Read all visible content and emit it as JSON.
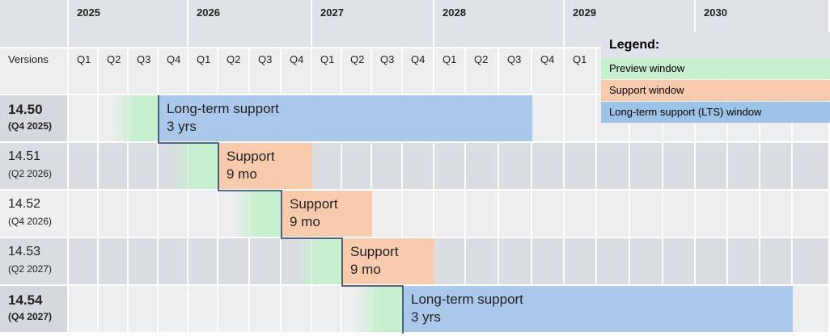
{
  "header": {
    "years": [
      "2025",
      "2026",
      "2027",
      "2028",
      "2029",
      "2030"
    ],
    "versions_label": "Versions",
    "quarters": [
      "Q1",
      "Q2",
      "Q3",
      "Q4",
      "Q1",
      "Q2",
      "Q3",
      "Q4",
      "Q1",
      "Q2",
      "Q3",
      "Q4",
      "Q1",
      "Q2",
      "Q3",
      "Q4",
      "Q1"
    ]
  },
  "rows": [
    {
      "version": "14.50",
      "date": "(Q4 2025)",
      "bar_title": "Long-term support",
      "bar_duration": "3 yrs"
    },
    {
      "version": "14.51",
      "date": "(Q2 2026)",
      "bar_title": "Support",
      "bar_duration": "9 mo"
    },
    {
      "version": "14.52",
      "date": "(Q4 2026)",
      "bar_title": "Support",
      "bar_duration": "9 mo"
    },
    {
      "version": "14.53",
      "date": "(Q2 2027)",
      "bar_title": "Support",
      "bar_duration": "9 mo"
    },
    {
      "version": "14.54",
      "date": "(Q4 2027)",
      "bar_title": "Long-term support",
      "bar_duration": "3 yrs"
    }
  ],
  "legend": {
    "title": "Legend:",
    "items": [
      "Preview window",
      "Support window",
      "Long-term support (LTS) window"
    ]
  }
}
